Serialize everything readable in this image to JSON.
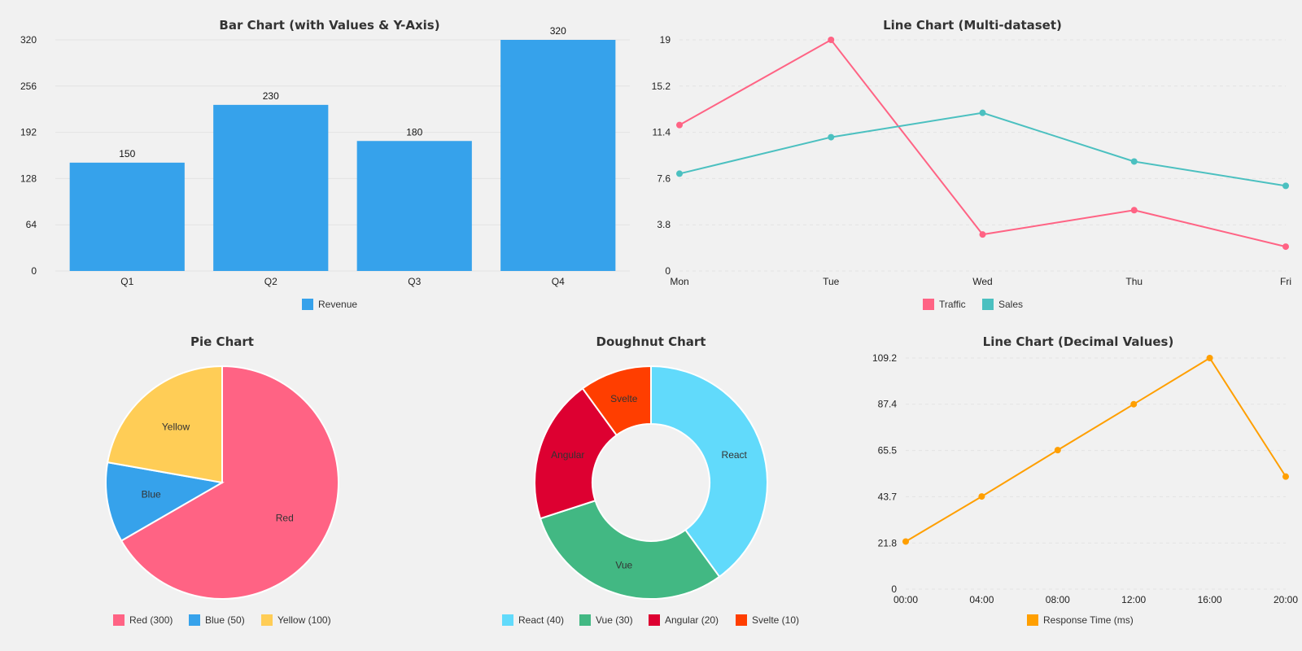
{
  "chart_data": [
    {
      "type": "bar",
      "title": "Bar Chart (with Values & Y-Axis)",
      "categories": [
        "Q1",
        "Q2",
        "Q3",
        "Q4"
      ],
      "series": [
        {
          "name": "Revenue",
          "values": [
            150,
            230,
            180,
            320
          ],
          "color": "#36a2eb"
        }
      ],
      "yticks": [
        0,
        64,
        128,
        192,
        256,
        320
      ],
      "ylim": [
        0,
        320
      ],
      "show_values": true,
      "grid": true,
      "legend": "bottom"
    },
    {
      "type": "line",
      "title": "Line Chart (Multi-dataset)",
      "categories": [
        "Mon",
        "Tue",
        "Wed",
        "Thu",
        "Fri"
      ],
      "series": [
        {
          "name": "Traffic",
          "values": [
            12,
            19,
            3,
            5,
            2
          ],
          "color": "#ff6384"
        },
        {
          "name": "Sales",
          "values": [
            8,
            11,
            13,
            9,
            7
          ],
          "color": "#4bc0c0"
        }
      ],
      "yticks": [
        "0",
        "3.8",
        "7.6",
        "11.4",
        "15.2",
        "19"
      ],
      "ylim": [
        0,
        19
      ],
      "grid": true,
      "legend": "bottom"
    },
    {
      "type": "pie",
      "title": "Pie Chart",
      "slices": [
        {
          "label": "Red",
          "legend": "Red (300)",
          "value": 300,
          "color": "#ff6384"
        },
        {
          "label": "Blue",
          "legend": "Blue (50)",
          "value": 50,
          "color": "#36a2eb"
        },
        {
          "label": "Yellow",
          "legend": "Yellow (100)",
          "value": 100,
          "color": "#ffcd56"
        }
      ],
      "legend": "bottom"
    },
    {
      "type": "pie",
      "title": "Doughnut Chart",
      "doughnut": true,
      "slices": [
        {
          "label": "React",
          "legend": "React (40)",
          "value": 40,
          "color": "#61dafb"
        },
        {
          "label": "Vue",
          "legend": "Vue (30)",
          "value": 30,
          "color": "#42b883"
        },
        {
          "label": "Angular",
          "legend": "Angular (20)",
          "value": 20,
          "color": "#dd0031"
        },
        {
          "label": "Svelte",
          "legend": "Svelte (10)",
          "value": 10,
          "color": "#ff3e00"
        }
      ],
      "legend": "bottom"
    },
    {
      "type": "line",
      "title": "Line Chart (Decimal Values)",
      "categories": [
        "00:00",
        "04:00",
        "08:00",
        "12:00",
        "16:00",
        "20:00"
      ],
      "series": [
        {
          "name": "Response Time (ms)",
          "values": [
            22.5,
            43.8,
            65.7,
            87.4,
            109.2,
            53.2
          ],
          "color": "#ff9f00"
        }
      ],
      "yticks": [
        "0",
        "21.8",
        "43.7",
        "65.5",
        "87.4",
        "109.2"
      ],
      "ylim": [
        0,
        109.2
      ],
      "grid": true,
      "legend": "bottom"
    }
  ]
}
